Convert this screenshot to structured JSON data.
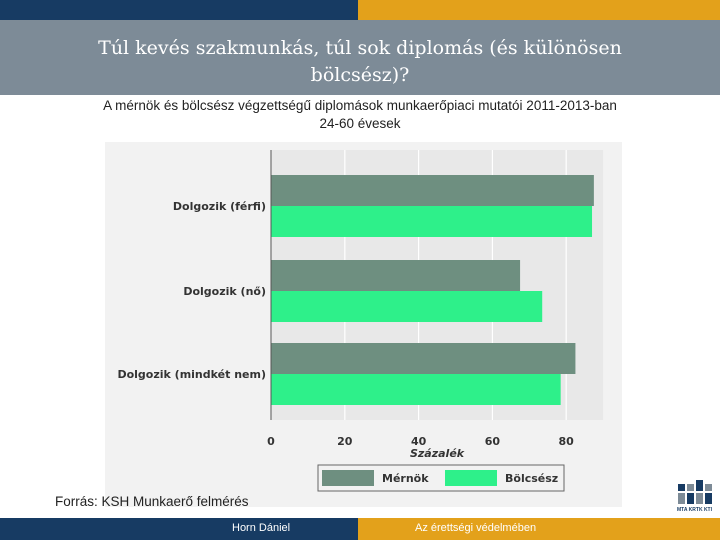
{
  "slide": {
    "title": "Túl kevés szakmunkás, túl sok diplomás (és különösen bölcsész)?",
    "subtitle_line1": "A mérnök és bölcsész végzettségű diplomások munkaerőpiaci mutatói 2011-2013-ban",
    "subtitle_line2": "24-60 évesek",
    "source": "Forrás: KSH Munkaerő felmérés",
    "footer_author": "Horn Dániel",
    "footer_slogan": "Az érettségi védelmében",
    "logo_text": "MTA KRTK KTI",
    "colors": {
      "navy": "#173b63",
      "gold": "#e3a11b",
      "title_gray": "#7d8b97"
    }
  },
  "chart_data": {
    "type": "bar",
    "orientation": "horizontal",
    "categories": [
      "Dolgozik (férfi)",
      "Dolgozik (nő)",
      "Dolgozik (mindkét nem)"
    ],
    "series": [
      {
        "name": "Mérnök",
        "values": [
          87.5,
          67.5,
          82.5
        ],
        "color": "#6e8f80"
      },
      {
        "name": "Bölcsész",
        "values": [
          87,
          73.5,
          78.5
        ],
        "color": "#2ef08a"
      }
    ],
    "xlabel": "Százalék",
    "ylabel": "",
    "xlim": [
      0,
      90
    ],
    "xticks": [
      0,
      20,
      40,
      60,
      80
    ],
    "legend": "bottom",
    "grid": true
  }
}
